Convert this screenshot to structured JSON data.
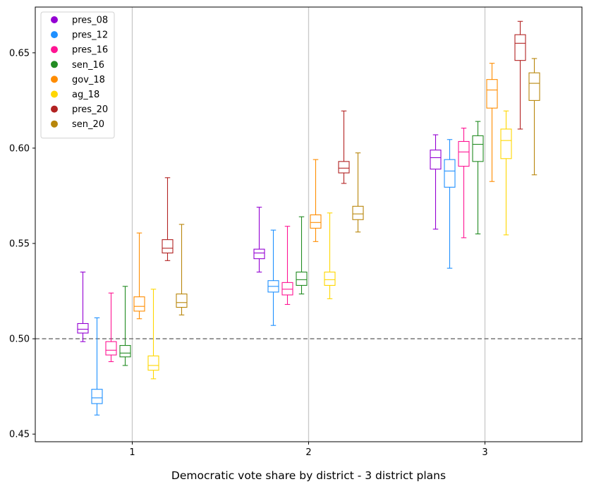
{
  "chart_data": {
    "type": "box",
    "xlabel": "Democratic vote share by district - 3 district plans",
    "ylabel": "",
    "ylim": [
      0.446,
      0.674
    ],
    "xlim": [
      0.45,
      3.55
    ],
    "yticks": [
      "0.45",
      "0.50",
      "0.55",
      "0.60",
      "0.65"
    ],
    "categories": [
      "1",
      "2",
      "3"
    ],
    "reference_line": {
      "y": 0.5,
      "style": "dashed",
      "color": "#808080"
    },
    "legend": {
      "placement": "top-left"
    },
    "series": [
      {
        "name": "pres_08",
        "color": "#9400D3",
        "boxes": [
          {
            "whislo": 0.4985,
            "q1": 0.503,
            "med": 0.505,
            "q3": 0.508,
            "whishi": 0.535
          },
          {
            "whislo": 0.535,
            "q1": 0.542,
            "med": 0.545,
            "q3": 0.547,
            "whishi": 0.569
          },
          {
            "whislo": 0.5575,
            "q1": 0.589,
            "med": 0.595,
            "q3": 0.599,
            "whishi": 0.607
          }
        ]
      },
      {
        "name": "pres_12",
        "color": "#1E90FF",
        "boxes": [
          {
            "whislo": 0.46,
            "q1": 0.466,
            "med": 0.469,
            "q3": 0.4735,
            "whishi": 0.511
          },
          {
            "whislo": 0.507,
            "q1": 0.5245,
            "med": 0.5275,
            "q3": 0.5305,
            "whishi": 0.557
          },
          {
            "whislo": 0.537,
            "q1": 0.5795,
            "med": 0.588,
            "q3": 0.594,
            "whishi": 0.6045
          }
        ]
      },
      {
        "name": "pres_16",
        "color": "#FF1493",
        "boxes": [
          {
            "whislo": 0.488,
            "q1": 0.4915,
            "med": 0.494,
            "q3": 0.4985,
            "whishi": 0.524
          },
          {
            "whislo": 0.518,
            "q1": 0.523,
            "med": 0.526,
            "q3": 0.5295,
            "whishi": 0.559
          },
          {
            "whislo": 0.553,
            "q1": 0.5905,
            "med": 0.598,
            "q3": 0.6035,
            "whishi": 0.6105
          }
        ]
      },
      {
        "name": "sen_16",
        "color": "#228B22",
        "boxes": [
          {
            "whislo": 0.486,
            "q1": 0.4905,
            "med": 0.4925,
            "q3": 0.4965,
            "whishi": 0.5275
          },
          {
            "whislo": 0.5235,
            "q1": 0.528,
            "med": 0.531,
            "q3": 0.535,
            "whishi": 0.564
          },
          {
            "whislo": 0.555,
            "q1": 0.593,
            "med": 0.602,
            "q3": 0.6065,
            "whishi": 0.614
          }
        ]
      },
      {
        "name": "gov_18",
        "color": "#FF8C00",
        "boxes": [
          {
            "whislo": 0.5105,
            "q1": 0.5145,
            "med": 0.517,
            "q3": 0.522,
            "whishi": 0.5555
          },
          {
            "whislo": 0.551,
            "q1": 0.558,
            "med": 0.561,
            "q3": 0.565,
            "whishi": 0.594
          },
          {
            "whislo": 0.5825,
            "q1": 0.621,
            "med": 0.6305,
            "q3": 0.636,
            "whishi": 0.6445
          }
        ]
      },
      {
        "name": "ag_18",
        "color": "#FFD700",
        "boxes": [
          {
            "whislo": 0.479,
            "q1": 0.4835,
            "med": 0.486,
            "q3": 0.491,
            "whishi": 0.526
          },
          {
            "whislo": 0.521,
            "q1": 0.528,
            "med": 0.531,
            "q3": 0.535,
            "whishi": 0.566
          },
          {
            "whislo": 0.5545,
            "q1": 0.5945,
            "med": 0.604,
            "q3": 0.61,
            "whishi": 0.6195
          }
        ]
      },
      {
        "name": "pres_20",
        "color": "#B22222",
        "boxes": [
          {
            "whislo": 0.541,
            "q1": 0.545,
            "med": 0.5475,
            "q3": 0.552,
            "whishi": 0.5845
          },
          {
            "whislo": 0.5815,
            "q1": 0.587,
            "med": 0.5895,
            "q3": 0.593,
            "whishi": 0.6195
          },
          {
            "whislo": 0.61,
            "q1": 0.646,
            "med": 0.655,
            "q3": 0.6595,
            "whishi": 0.6665
          }
        ]
      },
      {
        "name": "sen_20",
        "color": "#B8860B",
        "boxes": [
          {
            "whislo": 0.5125,
            "q1": 0.5165,
            "med": 0.519,
            "q3": 0.5235,
            "whishi": 0.56
          },
          {
            "whislo": 0.556,
            "q1": 0.5625,
            "med": 0.5655,
            "q3": 0.5695,
            "whishi": 0.5975
          },
          {
            "whislo": 0.586,
            "q1": 0.625,
            "med": 0.634,
            "q3": 0.6395,
            "whishi": 0.647
          }
        ]
      }
    ]
  }
}
